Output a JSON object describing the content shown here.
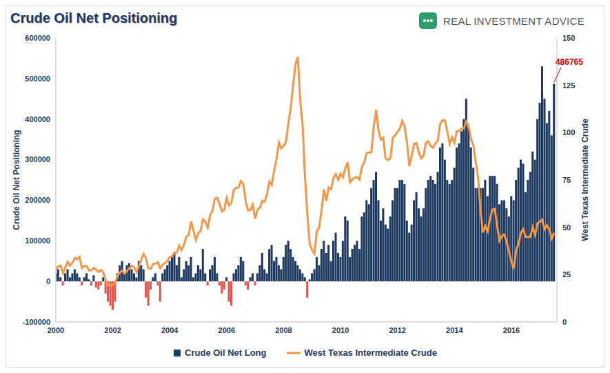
{
  "chart_data": {
    "type": "bar",
    "title": "Crude Oil Net Positioning",
    "brand": "REAL INVESTMENT ADVICE",
    "ylabel": "Crude Oil Net Positioning",
    "y2label": "West Texas Intermediate Crude",
    "grid": false,
    "legend": "bottom",
    "x": [
      2000,
      2000.083,
      2000.167,
      2000.25,
      2000.333,
      2000.417,
      2000.5,
      2000.583,
      2000.667,
      2000.75,
      2000.833,
      2000.917,
      2001,
      2001.083,
      2001.167,
      2001.25,
      2001.333,
      2001.417,
      2001.5,
      2001.583,
      2001.667,
      2001.75,
      2001.833,
      2001.917,
      2002,
      2002.083,
      2002.167,
      2002.25,
      2002.333,
      2002.417,
      2002.5,
      2002.583,
      2002.667,
      2002.75,
      2002.833,
      2002.917,
      2003,
      2003.083,
      2003.167,
      2003.25,
      2003.333,
      2003.417,
      2003.5,
      2003.583,
      2003.667,
      2003.75,
      2003.833,
      2003.917,
      2004,
      2004.083,
      2004.167,
      2004.25,
      2004.333,
      2004.417,
      2004.5,
      2004.583,
      2004.667,
      2004.75,
      2004.833,
      2004.917,
      2005,
      2005.083,
      2005.167,
      2005.25,
      2005.333,
      2005.417,
      2005.5,
      2005.583,
      2005.667,
      2005.75,
      2005.833,
      2005.917,
      2006,
      2006.083,
      2006.167,
      2006.25,
      2006.333,
      2006.417,
      2006.5,
      2006.583,
      2006.667,
      2006.75,
      2006.833,
      2006.917,
      2007,
      2007.083,
      2007.167,
      2007.25,
      2007.333,
      2007.417,
      2007.5,
      2007.583,
      2007.667,
      2007.75,
      2007.833,
      2007.917,
      2008,
      2008.083,
      2008.167,
      2008.25,
      2008.333,
      2008.417,
      2008.5,
      2008.583,
      2008.667,
      2008.75,
      2008.833,
      2008.917,
      2009,
      2009.083,
      2009.167,
      2009.25,
      2009.333,
      2009.417,
      2009.5,
      2009.583,
      2009.667,
      2009.75,
      2009.833,
      2009.917,
      2010,
      2010.083,
      2010.167,
      2010.25,
      2010.333,
      2010.417,
      2010.5,
      2010.583,
      2010.667,
      2010.75,
      2010.833,
      2010.917,
      2011,
      2011.083,
      2011.167,
      2011.25,
      2011.333,
      2011.417,
      2011.5,
      2011.583,
      2011.667,
      2011.75,
      2011.833,
      2011.917,
      2012,
      2012.083,
      2012.167,
      2012.25,
      2012.333,
      2012.417,
      2012.5,
      2012.583,
      2012.667,
      2012.75,
      2012.833,
      2012.917,
      2013,
      2013.083,
      2013.167,
      2013.25,
      2013.333,
      2013.417,
      2013.5,
      2013.583,
      2013.667,
      2013.75,
      2013.833,
      2013.917,
      2014,
      2014.083,
      2014.167,
      2014.25,
      2014.333,
      2014.417,
      2014.5,
      2014.583,
      2014.667,
      2014.75,
      2014.833,
      2014.917,
      2015,
      2015.083,
      2015.167,
      2015.25,
      2015.333,
      2015.417,
      2015.5,
      2015.583,
      2015.667,
      2015.75,
      2015.833,
      2015.917,
      2016,
      2016.083,
      2016.167,
      2016.25,
      2016.333,
      2016.417,
      2016.5,
      2016.583,
      2016.667,
      2016.75,
      2016.833,
      2016.917,
      2017,
      2017.083,
      2017.167,
      2017.25,
      2017.333,
      2017.417,
      2017.5
    ],
    "xlim": [
      2000,
      2017.6
    ],
    "xticks": [
      2000,
      2002,
      2004,
      2006,
      2008,
      2010,
      2012,
      2014,
      2016
    ],
    "ylim": [
      -100000,
      600000
    ],
    "yticks": [
      -100000,
      0,
      100000,
      200000,
      300000,
      400000,
      500000,
      600000
    ],
    "y2lim": [
      0,
      150
    ],
    "y2ticks": [
      0,
      25,
      50,
      75,
      100,
      125,
      150
    ],
    "series": [
      {
        "name": "Crude Oil Net Long",
        "type": "bar",
        "color": "#1f3a60",
        "values": [
          20000,
          30000,
          10000,
          -10000,
          20000,
          30000,
          10000,
          20000,
          30000,
          20000,
          10000,
          -10000,
          10000,
          20000,
          5000,
          -10000,
          15000,
          -15000,
          -20000,
          -10000,
          10000,
          -30000,
          -50000,
          -60000,
          -70000,
          -50000,
          20000,
          40000,
          50000,
          20000,
          40000,
          45000,
          30000,
          20000,
          10000,
          50000,
          40000,
          30000,
          -40000,
          -60000,
          -20000,
          10000,
          20000,
          -10000,
          -50000,
          20000,
          30000,
          40000,
          50000,
          60000,
          70000,
          40000,
          60000,
          10000,
          30000,
          50000,
          40000,
          60000,
          10000,
          20000,
          40000,
          30000,
          80000,
          20000,
          -10000,
          30000,
          40000,
          60000,
          20000,
          -10000,
          -30000,
          -20000,
          10000,
          -50000,
          -60000,
          20000,
          30000,
          40000,
          60000,
          50000,
          -10000,
          -20000,
          10000,
          20000,
          -10000,
          20000,
          40000,
          70000,
          30000,
          20000,
          80000,
          90000,
          50000,
          60000,
          40000,
          30000,
          60000,
          90000,
          100000,
          80000,
          60000,
          50000,
          40000,
          30000,
          20000,
          10000,
          -40000,
          5000,
          20000,
          30000,
          60000,
          40000,
          80000,
          100000,
          70000,
          90000,
          50000,
          100000,
          120000,
          70000,
          60000,
          100000,
          160000,
          150000,
          60000,
          80000,
          90000,
          100000,
          80000,
          160000,
          170000,
          200000,
          190000,
          230000,
          250000,
          270000,
          200000,
          150000,
          180000,
          140000,
          130000,
          160000,
          200000,
          230000,
          230000,
          250000,
          250000,
          240000,
          150000,
          120000,
          140000,
          200000,
          220000,
          180000,
          160000,
          180000,
          230000,
          250000,
          260000,
          250000,
          240000,
          270000,
          330000,
          340000,
          300000,
          250000,
          240000,
          250000,
          280000,
          330000,
          340000,
          370000,
          400000,
          450000,
          380000,
          330000,
          280000,
          230000,
          230000,
          230000,
          230000,
          250000,
          210000,
          260000,
          260000,
          260000,
          240000,
          190000,
          200000,
          200000,
          180000,
          160000,
          210000,
          200000,
          250000,
          280000,
          300000,
          290000,
          220000,
          250000,
          270000,
          320000,
          300000,
          400000,
          440000,
          530000,
          450000,
          390000,
          420000,
          360000,
          486765
        ],
        "colors": [
          "#1f3a60",
          "#1f3a60",
          "#1f3a60",
          "#e0574f",
          "#1f3a60",
          "#1f3a60",
          "#1f3a60",
          "#1f3a60",
          "#1f3a60",
          "#1f3a60",
          "#1f3a60",
          "#e0574f",
          "#1f3a60",
          "#1f3a60",
          "#1f3a60",
          "#e0574f",
          "#1f3a60",
          "#e0574f",
          "#e0574f",
          "#e0574f",
          "#1f3a60",
          "#e0574f",
          "#e0574f",
          "#e0574f",
          "#e0574f",
          "#e0574f",
          "#1f3a60",
          "#1f3a60",
          "#1f3a60",
          "#1f3a60",
          "#1f3a60",
          "#1f3a60",
          "#1f3a60",
          "#1f3a60",
          "#1f3a60",
          "#1f3a60",
          "#1f3a60",
          "#1f3a60",
          "#e0574f",
          "#e0574f",
          "#e0574f",
          "#1f3a60",
          "#1f3a60",
          "#e0574f",
          "#e0574f",
          "#1f3a60",
          "#1f3a60",
          "#1f3a60",
          "#1f3a60",
          "#1f3a60",
          "#1f3a60",
          "#1f3a60",
          "#1f3a60",
          "#1f3a60",
          "#1f3a60",
          "#1f3a60",
          "#1f3a60",
          "#1f3a60",
          "#1f3a60",
          "#1f3a60",
          "#1f3a60",
          "#1f3a60",
          "#1f3a60",
          "#1f3a60",
          "#e0574f",
          "#1f3a60",
          "#1f3a60",
          "#1f3a60",
          "#1f3a60",
          "#e0574f",
          "#e0574f",
          "#e0574f",
          "#1f3a60",
          "#e0574f",
          "#e0574f",
          "#1f3a60",
          "#1f3a60",
          "#1f3a60",
          "#1f3a60",
          "#1f3a60",
          "#e0574f",
          "#e0574f",
          "#1f3a60",
          "#1f3a60",
          "#e0574f",
          "#1f3a60",
          "#1f3a60",
          "#1f3a60",
          "#1f3a60",
          "#1f3a60",
          "#1f3a60",
          "#1f3a60",
          "#1f3a60",
          "#1f3a60",
          "#1f3a60",
          "#1f3a60",
          "#1f3a60",
          "#1f3a60",
          "#1f3a60",
          "#1f3a60",
          "#1f3a60",
          "#1f3a60",
          "#1f3a60",
          "#1f3a60",
          "#1f3a60",
          "#1f3a60",
          "#e0574f",
          "#1f3a60",
          "#1f3a60",
          "#1f3a60",
          "#1f3a60",
          "#1f3a60",
          "#1f3a60",
          "#1f3a60",
          "#1f3a60",
          "#1f3a60",
          "#1f3a60",
          "#1f3a60",
          "#1f3a60",
          "#1f3a60",
          "#1f3a60",
          "#1f3a60",
          "#1f3a60",
          "#1f3a60",
          "#1f3a60",
          "#1f3a60",
          "#1f3a60",
          "#1f3a60",
          "#1f3a60",
          "#1f3a60",
          "#1f3a60",
          "#1f3a60",
          "#1f3a60",
          "#1f3a60",
          "#1f3a60",
          "#1f3a60",
          "#1f3a60",
          "#1f3a60",
          "#1f3a60",
          "#1f3a60",
          "#1f3a60",
          "#1f3a60",
          "#1f3a60",
          "#1f3a60",
          "#1f3a60",
          "#1f3a60",
          "#1f3a60",
          "#1f3a60",
          "#1f3a60",
          "#1f3a60",
          "#1f3a60",
          "#1f3a60",
          "#1f3a60",
          "#1f3a60",
          "#1f3a60",
          "#1f3a60",
          "#1f3a60",
          "#1f3a60",
          "#1f3a60",
          "#1f3a60",
          "#1f3a60",
          "#1f3a60",
          "#1f3a60",
          "#1f3a60",
          "#1f3a60",
          "#1f3a60",
          "#1f3a60",
          "#1f3a60",
          "#1f3a60",
          "#1f3a60",
          "#1f3a60",
          "#1f3a60",
          "#1f3a60",
          "#1f3a60",
          "#1f3a60",
          "#1f3a60",
          "#1f3a60",
          "#1f3a60",
          "#1f3a60",
          "#1f3a60",
          "#1f3a60",
          "#1f3a60",
          "#1f3a60",
          "#1f3a60",
          "#1f3a60",
          "#1f3a60",
          "#1f3a60",
          "#1f3a60",
          "#1f3a60",
          "#1f3a60",
          "#1f3a60",
          "#1f3a60",
          "#1f3a60",
          "#1f3a60",
          "#1f3a60",
          "#1f3a60",
          "#1f3a60",
          "#1f3a60",
          "#1f3a60",
          "#1f3a60",
          "#1f3a60",
          "#1f3a60",
          "#1f3a60",
          "#1f3a60",
          "#1f3a60",
          "#1f3a60",
          "#1f3a60",
          "#1f3a60",
          "#1f3a60",
          "#1f3a60",
          "#1f3a60"
        ]
      },
      {
        "name": "West Texas Intermediate Crude",
        "type": "line",
        "axis": "y2",
        "color": "#f79646",
        "values": [
          27.2,
          29.4,
          29.9,
          25.7,
          28.8,
          31.8,
          29.7,
          31.2,
          33.9,
          33.1,
          34.4,
          28.5,
          29.6,
          29.6,
          27.2,
          27.4,
          28.6,
          27.6,
          26.4,
          27.4,
          26.2,
          22.2,
          19.6,
          19.3,
          19.7,
          20.7,
          24.4,
          26.2,
          27,
          25.5,
          26.9,
          28.4,
          29.7,
          28.9,
          26.3,
          29.4,
          32.9,
          35.9,
          33.6,
          28.3,
          28.1,
          30.7,
          30.8,
          31.6,
          28.3,
          30.3,
          31.1,
          32.2,
          34.3,
          34.7,
          36.7,
          36.7,
          40.3,
          38,
          40.8,
          44.9,
          45.9,
          53.1,
          48.5,
          43.3,
          46.8,
          48,
          54.3,
          53,
          49.8,
          56.3,
          58.7,
          65,
          65.6,
          62.4,
          58.3,
          59.4,
          65.5,
          61.6,
          62.9,
          69.7,
          70.9,
          71,
          74.4,
          73,
          63.8,
          58.9,
          59.1,
          62,
          54.5,
          59.3,
          60.4,
          63.9,
          63.5,
          67.5,
          74.1,
          72.4,
          79.9,
          85.8,
          94.8,
          91.7,
          93,
          95,
          105,
          113,
          125,
          136,
          140,
          117,
          104,
          77,
          57,
          41,
          38,
          36,
          48,
          50,
          59,
          70,
          64,
          71,
          70,
          76,
          78,
          75,
          78.3,
          76.4,
          81.2,
          84.3,
          73.7,
          75.3,
          76.3,
          76.6,
          75.2,
          81.9,
          84.3,
          89.2,
          89.5,
          89.6,
          102.9,
          112,
          101.3,
          96.3,
          97.3,
          86.3,
          85.5,
          86.3,
          97.2,
          98.6,
          100.3,
          102.2,
          106.2,
          103.3,
          94.7,
          82.3,
          87.9,
          94.1,
          94.5,
          89.5,
          86.5,
          87.9,
          94.8,
          95.3,
          92.9,
          92,
          94.5,
          95.8,
          104.6,
          106.6,
          106.3,
          100.5,
          93.9,
          97.6,
          94.6,
          100.8,
          100.8,
          102.1,
          102.2,
          105.8,
          103.6,
          96.5,
          93.2,
          84.4,
          75.8,
          59.3,
          47.2,
          50.6,
          47.8,
          54.5,
          59.3,
          59.8,
          50.9,
          42.9,
          45.5,
          46.2,
          42.4,
          37.2,
          32,
          28,
          38,
          41,
          47,
          49,
          45,
          45,
          45,
          50,
          46,
          52,
          53,
          54,
          49,
          51,
          49,
          44,
          47
        ]
      }
    ],
    "annotations": [
      {
        "text": "486765",
        "x": 2017.5,
        "y": 486765,
        "color": "#e00000"
      }
    ]
  }
}
